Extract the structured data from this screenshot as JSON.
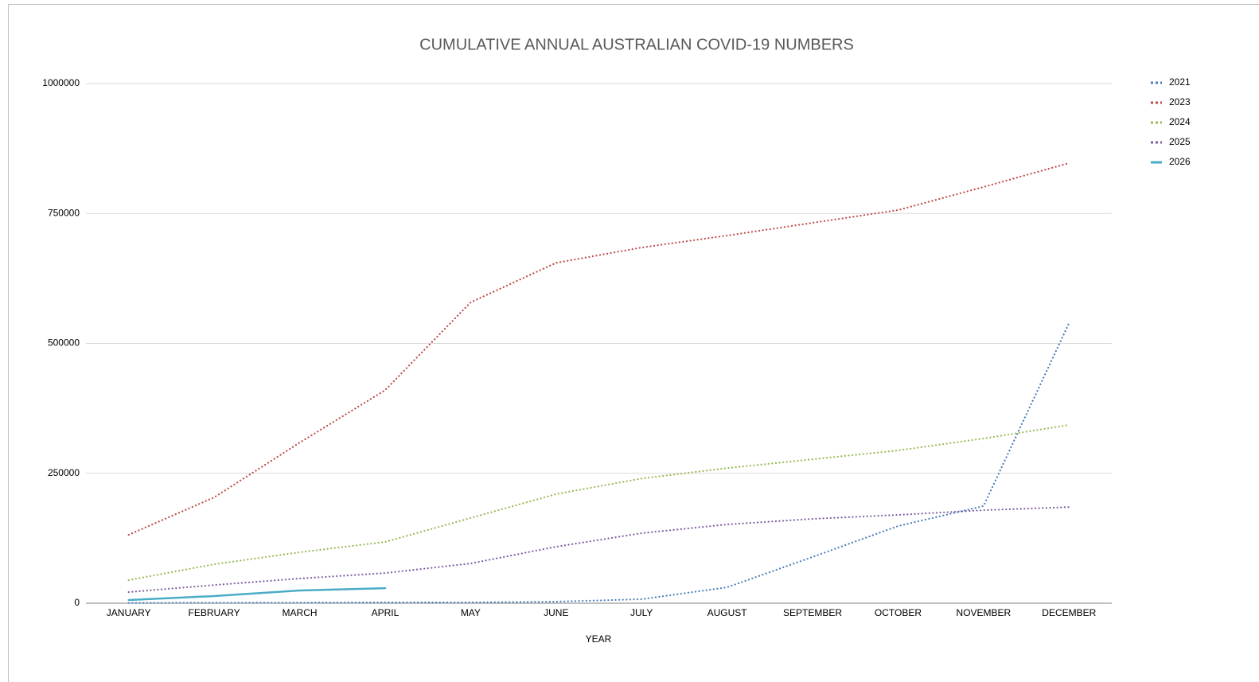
{
  "chart_data": {
    "type": "line",
    "title": "CUMULATIVE ANNUAL AUSTRALIAN COVID-19 NUMBERS",
    "x_label": "YEAR",
    "categories": [
      "JANUARY",
      "FEBRUARY",
      "MARCH",
      "APRIL",
      "MAY",
      "JUNE",
      "JULY",
      "AUGUST",
      "SEPTEMBER",
      "OCTOBER",
      "NOVEMBER",
      "DECEMBER"
    ],
    "series": [
      {
        "name": "2021",
        "color": "#4a7ebb",
        "style": "dotted",
        "values": [
          500,
          800,
          1000,
          1500,
          1500,
          3000,
          7700,
          30600,
          89000,
          148500,
          187000,
          539000
        ]
      },
      {
        "name": "2023",
        "color": "#be4b48",
        "style": "dotted",
        "values": [
          131700,
          203700,
          309000,
          410000,
          579000,
          655000,
          684500,
          707500,
          732000,
          756500,
          801000,
          847000
        ]
      },
      {
        "name": "2024",
        "color": "#98b954",
        "style": "dotted",
        "values": [
          44400,
          75000,
          98000,
          118000,
          164000,
          210000,
          240000,
          260000,
          277000,
          294000,
          317000,
          343000
        ]
      },
      {
        "name": "2025",
        "color": "#7d60a0",
        "style": "dotted",
        "values": [
          21400,
          35000,
          47500,
          58000,
          76500,
          108700,
          134800,
          151600,
          162300,
          170000,
          179000,
          185000
        ]
      },
      {
        "name": "2026",
        "color": "#4bacc6",
        "style": "solid",
        "values": [
          6100,
          13800,
          24500,
          29000,
          null,
          null,
          null,
          null,
          null,
          null,
          null,
          null
        ]
      }
    ],
    "ylim": [
      0,
      1000000
    ],
    "yticks": [
      0,
      250000,
      500000,
      750000,
      1000000
    ],
    "grid": true,
    "legend": "right"
  }
}
